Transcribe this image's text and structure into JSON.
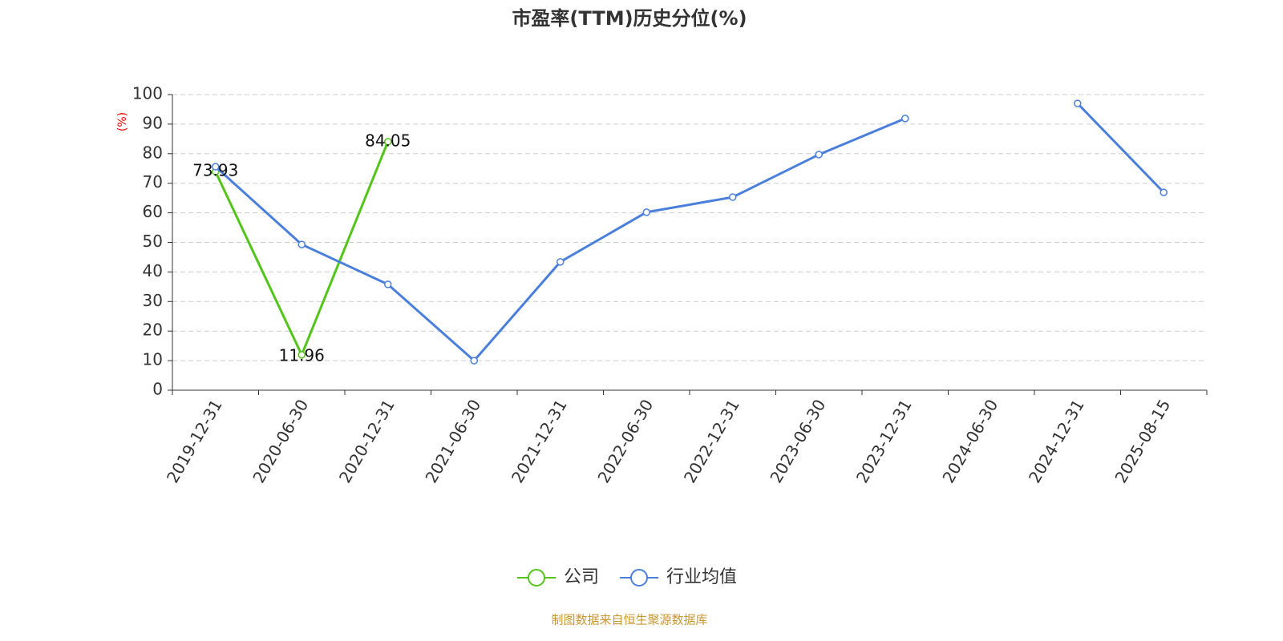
{
  "chart_data": {
    "type": "line",
    "title": "市盈率(TTM)历史分位(%)",
    "y_label": "(%)",
    "categories": [
      "2019-12-31",
      "2020-06-30",
      "2020-12-31",
      "2021-06-30",
      "2021-12-31",
      "2022-06-30",
      "2022-12-31",
      "2023-06-30",
      "2023-12-31",
      "2024-06-30",
      "2024-12-31",
      "2025-08-15"
    ],
    "series": [
      {
        "name": "公司",
        "color": "#52c41a",
        "values": [
          73.93,
          11.96,
          84.05,
          null,
          null,
          null,
          null,
          null,
          null,
          null,
          null,
          null
        ],
        "show_labels": true
      },
      {
        "name": "行业均值",
        "color": "#4a7fdc",
        "values": [
          75.6,
          49.3,
          35.8,
          10.0,
          43.4,
          60.2,
          65.3,
          79.7,
          91.9,
          null,
          97.0,
          66.9
        ],
        "show_labels": false
      }
    ],
    "ylim": [
      0,
      100
    ],
    "yticks": [
      0,
      10,
      20,
      30,
      40,
      50,
      60,
      70,
      80,
      90,
      100
    ],
    "grid": true,
    "legend": "bottom",
    "source": "制图数据来自恒生聚源数据库"
  }
}
